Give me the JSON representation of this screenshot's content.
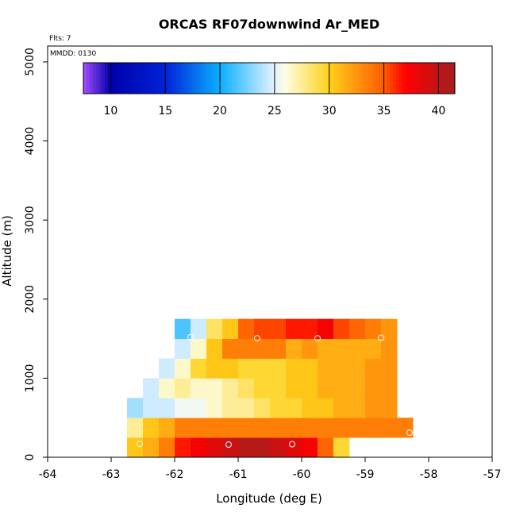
{
  "chart_data": {
    "type": "heatmap",
    "title": "ORCAS RF07downwind Ar_MED",
    "xlabel": "Longitude (deg E)",
    "ylabel": "Altitude (m)",
    "flights_label": "Flts: 7",
    "mmdd_label": "MMDD: 0130",
    "xlim": [
      -64,
      -57
    ],
    "ylim": [
      0,
      5200
    ],
    "xticks": [
      -64,
      -63,
      -62,
      -61,
      -60,
      -59,
      -58,
      -57
    ],
    "yticks": [
      0,
      1000,
      2000,
      3000,
      4000,
      5000
    ],
    "colorbar": {
      "range": [
        7.5,
        41.5
      ],
      "ticks": [
        10,
        15,
        20,
        25,
        30,
        35,
        40
      ],
      "stops": [
        {
          "v": 7.5,
          "c": "#a64dff"
        },
        {
          "v": 10,
          "c": "#0000a8"
        },
        {
          "v": 15,
          "c": "#0022d8"
        },
        {
          "v": 20,
          "c": "#0ab0ff"
        },
        {
          "v": 25,
          "c": "#e4f2ff"
        },
        {
          "v": 26,
          "c": "#fdfde2"
        },
        {
          "v": 30,
          "c": "#ffd11a"
        },
        {
          "v": 35,
          "c": "#ff5a00"
        },
        {
          "v": 37,
          "c": "#ff0000"
        },
        {
          "v": 41.5,
          "c": "#a21f1f"
        }
      ]
    },
    "cells": {
      "dx": 0.25,
      "dy": 250,
      "rows": [
        {
          "alt": 0,
          "x0": -62.75,
          "values": [
            30.5,
            31.5,
            33.5,
            36.5,
            37.5,
            38.5,
            39.5,
            40.5,
            40.5,
            39.5,
            38.5,
            37.5,
            34.5,
            29.5
          ]
        },
        {
          "alt": 250,
          "x0": -62.75,
          "values": [
            27.5,
            30.5,
            31.5,
            33.5,
            33.5,
            33.5,
            33.5,
            33.5,
            33.5,
            33.5,
            33.5,
            33.5,
            33.5,
            33.5,
            33.5,
            33.5,
            33.5,
            33.5
          ]
        },
        {
          "alt": 500,
          "x0": -62.75,
          "values": [
            23.5,
            24.5,
            24.5,
            25.5,
            25.5,
            26.5,
            27.5,
            27.5,
            28.5,
            29.5,
            29.5,
            30.5,
            30.5,
            31.5,
            31.5,
            32.5,
            32.5
          ]
        },
        {
          "alt": 750,
          "x0": -62.5,
          "values": [
            24.5,
            26.5,
            27.5,
            26.5,
            26.5,
            27.5,
            28.5,
            29.5,
            29.5,
            30.5,
            30.5,
            31.5,
            31.5,
            31.5,
            32.5,
            32.5
          ]
        },
        {
          "alt": 1000,
          "x0": -62.25,
          "values": [
            24.5,
            26.5,
            29.5,
            30.5,
            30.5,
            29.5,
            29.5,
            29.5,
            30.5,
            30.5,
            31.5,
            31.5,
            31.5,
            32.5,
            32.5
          ]
        },
        {
          "alt": 1250,
          "x0": -62.0,
          "values": [
            24.5,
            26.5,
            30.5,
            33.5,
            33.5,
            33.5,
            33.5,
            31.5,
            32.5,
            31.5,
            31.5,
            31.5,
            31.5,
            32.5
          ]
        },
        {
          "alt": 1500,
          "x0": -62.0,
          "values": [
            21.5,
            24.5,
            28.5,
            30.5,
            34.5,
            35.5,
            35.5,
            36.5,
            36.5,
            37.5,
            35.5,
            34.5,
            33.5,
            32.5
          ]
        }
      ]
    },
    "markers": [
      {
        "x": -62.55,
        "y": 170
      },
      {
        "x": -61.15,
        "y": 160
      },
      {
        "x": -60.15,
        "y": 165
      },
      {
        "x": -59.15,
        "y": 165
      },
      {
        "x": -58.3,
        "y": 310
      },
      {
        "x": -61.75,
        "y": 1520
      },
      {
        "x": -60.7,
        "y": 1505
      },
      {
        "x": -59.75,
        "y": 1505
      },
      {
        "x": -58.75,
        "y": 1510
      }
    ]
  }
}
